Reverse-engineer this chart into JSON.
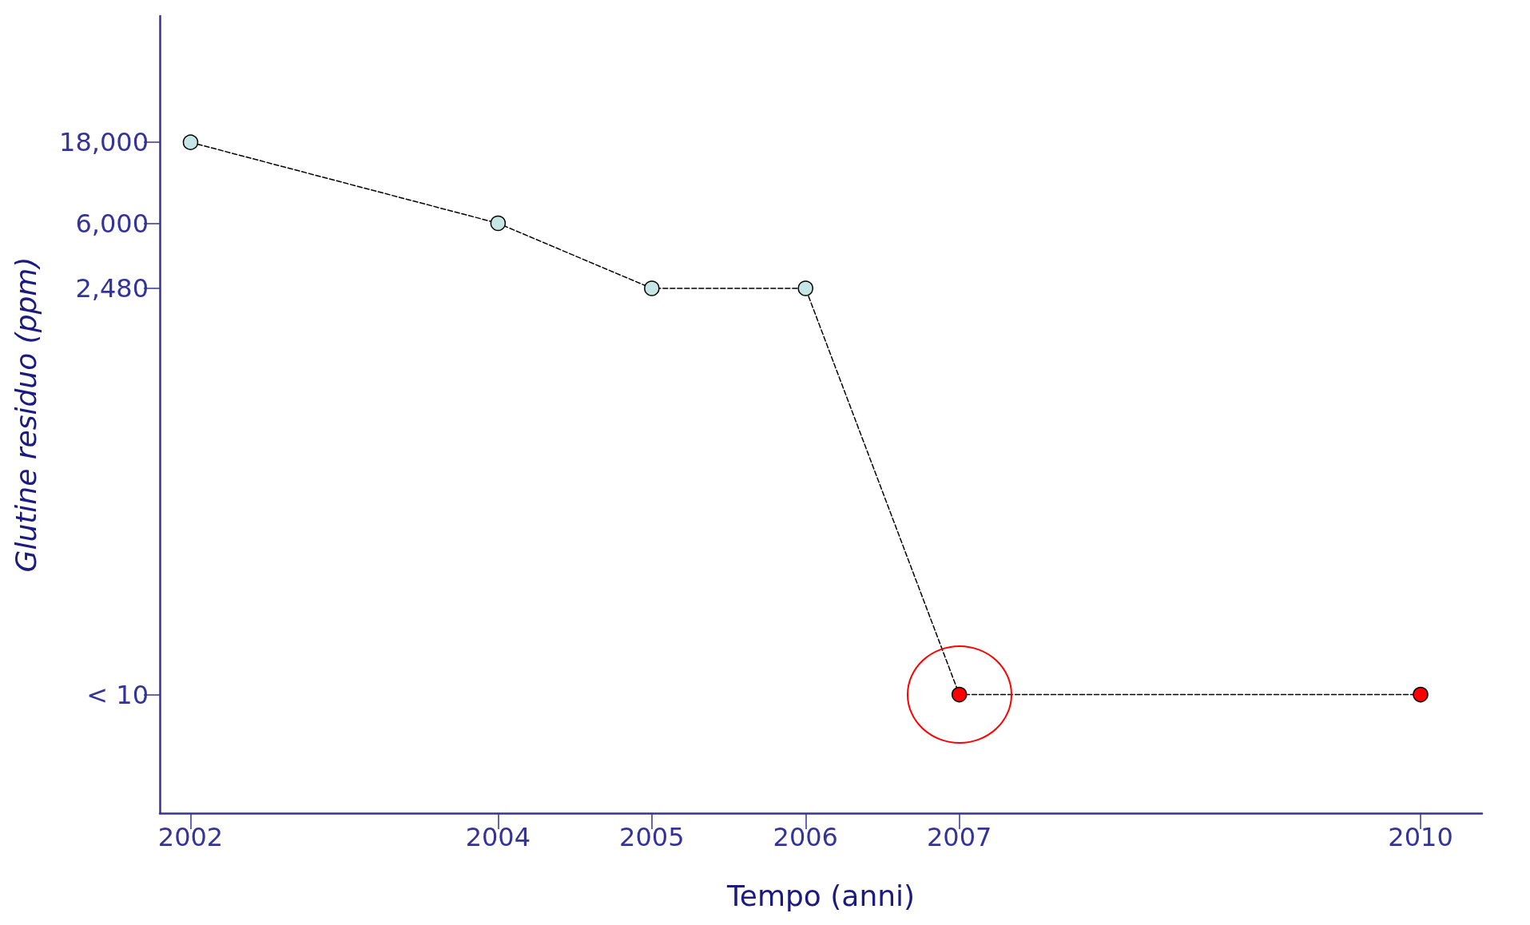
{
  "chart_data": {
    "type": "line",
    "xlabel": "Tempo (anni)",
    "ylabel": "Glutine residuo (ppm)",
    "x": [
      2002,
      2004,
      2005,
      2006,
      2007,
      2010
    ],
    "series": [
      {
        "color": "#000000",
        "colors": [
          "#c6e6e6",
          "#c6e6e6",
          "#c6e6e6",
          "#c6e6e6",
          "#ff0000",
          "#ff0000"
        ],
        "values": [
          18000,
          6000,
          2480,
          2480,
          10,
          10
        ]
      }
    ],
    "xlim": [
      2001.8,
      2010.4
    ],
    "xticks": [
      2002,
      2004,
      2005,
      2006,
      2007,
      2010
    ],
    "ylim": [
      2,
      100000
    ],
    "yticks": [
      {
        "value": 10,
        "label": "< 10"
      },
      {
        "value": 2480,
        "label": "2,480"
      },
      {
        "value": 6000,
        "label": "6,000"
      },
      {
        "value": 18000,
        "label": "18,000"
      }
    ],
    "log": "y",
    "grid": false,
    "marker": "circle",
    "line_style": "dashed"
  }
}
